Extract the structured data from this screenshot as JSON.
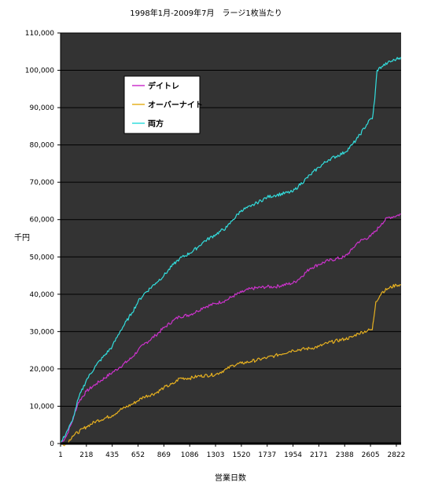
{
  "chart_data": {
    "type": "line",
    "title": "1998年1月-2009年7月　ラージ1枚当たり",
    "xlabel": "営業日数",
    "ylabel": "千円",
    "ylim": [
      0,
      110000
    ],
    "yticks": [
      0,
      10000,
      20000,
      30000,
      40000,
      50000,
      60000,
      70000,
      80000,
      90000,
      100000,
      110000
    ],
    "ytick_labels": [
      "0",
      "10,000",
      "20,000",
      "30,000",
      "40,000",
      "50,000",
      "60,000",
      "70,000",
      "80,000",
      "90,000",
      "100,000",
      "110,000"
    ],
    "xlim": [
      1,
      2862
    ],
    "xticks": [
      1,
      218,
      435,
      652,
      869,
      1086,
      1303,
      1520,
      1737,
      1954,
      2171,
      2388,
      2605,
      2822
    ],
    "xtick_labels": [
      "1",
      "218",
      "435",
      "652",
      "869",
      "1086",
      "1303",
      "1520",
      "1737",
      "1954",
      "2171",
      "2388",
      "2605",
      "2822"
    ],
    "grid": "horizontal",
    "plot_background": "#333333",
    "legend_position": "upper-left",
    "series": [
      {
        "name": "デイトレ",
        "color": "#cc33cc",
        "x": [
          1,
          50,
          100,
          150,
          218,
          300,
          435,
          500,
          600,
          652,
          700,
          800,
          869,
          950,
          1000,
          1086,
          1150,
          1200,
          1303,
          1400,
          1450,
          1520,
          1600,
          1737,
          1800,
          1954,
          2000,
          2100,
          2171,
          2250,
          2388,
          2450,
          2500,
          2605,
          2650,
          2700,
          2750,
          2822,
          2860
        ],
        "values": [
          0,
          2000,
          6000,
          11000,
          14000,
          16000,
          19000,
          20500,
          23000,
          25000,
          26500,
          29000,
          31000,
          33000,
          34000,
          34500,
          35500,
          36500,
          37500,
          38500,
          39500,
          40500,
          41500,
          42000,
          42000,
          43000,
          44000,
          47000,
          48000,
          49000,
          50000,
          52000,
          54000,
          55500,
          57000,
          59000,
          60500,
          61000,
          61500
        ]
      },
      {
        "name": "オーバーナイト",
        "color": "#e6b020",
        "x": [
          1,
          50,
          100,
          218,
          300,
          435,
          500,
          600,
          652,
          700,
          800,
          869,
          950,
          1000,
          1086,
          1150,
          1303,
          1400,
          1450,
          1520,
          1600,
          1737,
          1800,
          1954,
          2100,
          2171,
          2250,
          2388,
          2450,
          2500,
          2605,
          2620,
          2630,
          2650,
          2700,
          2750,
          2822,
          2860
        ],
        "values": [
          0,
          -200,
          2000,
          4500,
          6000,
          7500,
          9000,
          10500,
          11500,
          12500,
          13500,
          15000,
          16000,
          17500,
          17500,
          18000,
          18500,
          20000,
          21000,
          21500,
          22000,
          23000,
          23500,
          25000,
          25500,
          26000,
          27000,
          28000,
          28500,
          29500,
          30500,
          30500,
          33000,
          38000,
          40500,
          41500,
          42500,
          42500
        ]
      },
      {
        "name": "両方",
        "color": "#33dddd",
        "x": [
          1,
          50,
          100,
          150,
          218,
          300,
          435,
          500,
          600,
          652,
          700,
          800,
          869,
          950,
          1000,
          1086,
          1150,
          1200,
          1303,
          1400,
          1450,
          1520,
          1600,
          1650,
          1737,
          1800,
          1954,
          2000,
          2100,
          2171,
          2250,
          2388,
          2450,
          2500,
          2605,
          2620,
          2640,
          2660,
          2700,
          2750,
          2822,
          2860
        ],
        "values": [
          0,
          3000,
          6000,
          12000,
          17000,
          21000,
          26000,
          30000,
          35000,
          38000,
          40000,
          43000,
          45000,
          48000,
          49500,
          51000,
          52500,
          54000,
          56000,
          58000,
          60000,
          62500,
          63500,
          64500,
          66000,
          66500,
          67500,
          69000,
          72000,
          74000,
          76000,
          78000,
          80000,
          82000,
          87000,
          87000,
          92000,
          100000,
          101000,
          102000,
          103000,
          103500
        ]
      }
    ]
  }
}
